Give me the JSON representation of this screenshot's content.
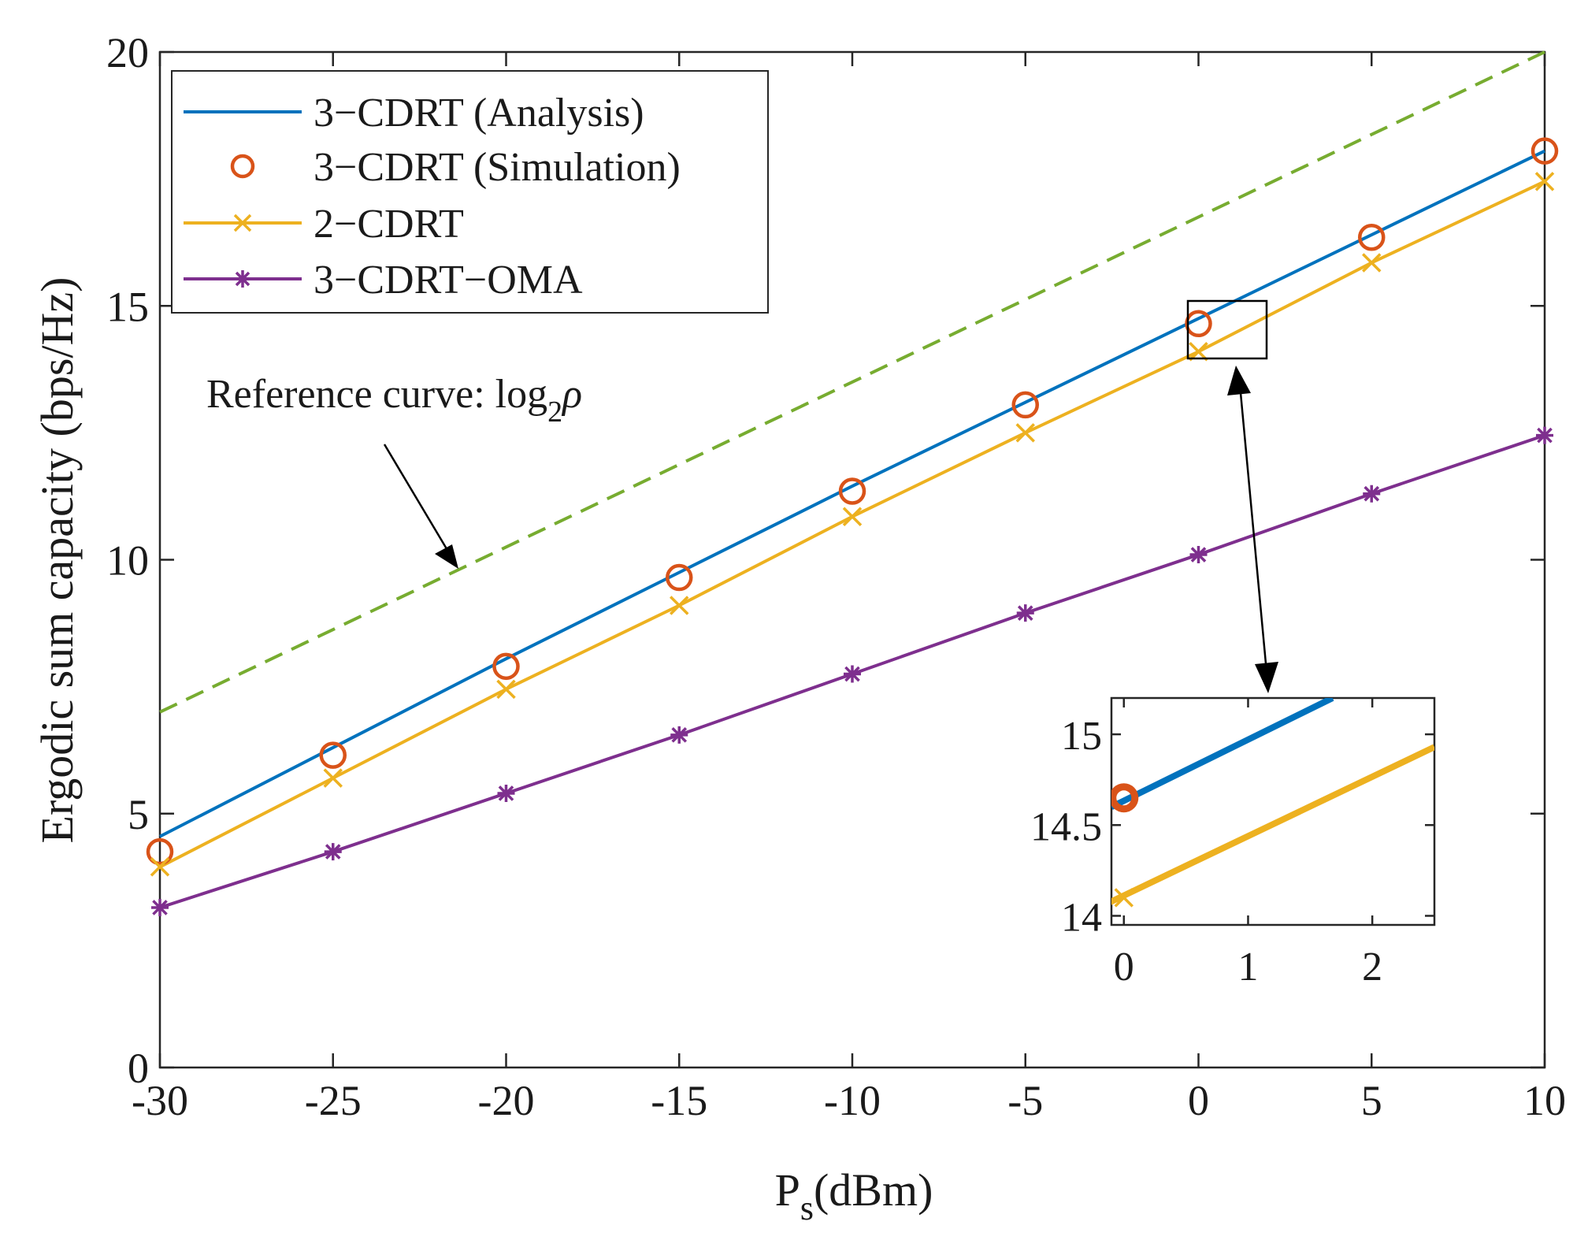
{
  "chart_data": {
    "type": "line",
    "xlabel_main": "P",
    "xlabel_sub": "s",
    "xlabel_unit": "(dBm)",
    "ylabel": "Ergodic sum capacity (bps/Hz)",
    "xlim": [
      -30,
      10
    ],
    "ylim": [
      0,
      20
    ],
    "xticks": [
      -30,
      -25,
      -20,
      -15,
      -10,
      -5,
      0,
      5,
      10
    ],
    "yticks": [
      0,
      5,
      10,
      15,
      20
    ],
    "x": [
      -30,
      -25,
      -20,
      -15,
      -10,
      -5,
      0,
      5,
      10
    ],
    "series": [
      {
        "name": "3−CDRT (Analysis)",
        "style": "line",
        "marker": "none",
        "color": "#0072BD",
        "values": [
          4.55,
          6.3,
          8.05,
          9.75,
          11.45,
          13.1,
          14.75,
          16.4,
          18.05
        ]
      },
      {
        "name": "3−CDRT (Simulation)",
        "style": "markers",
        "marker": "circle",
        "color": "#D95319",
        "values": [
          4.25,
          6.15,
          7.9,
          9.65,
          11.35,
          13.05,
          14.65,
          16.35,
          18.05
        ]
      },
      {
        "name": "2−CDRT",
        "style": "line",
        "marker": "x",
        "color": "#EDB120",
        "values": [
          3.95,
          5.7,
          7.45,
          9.1,
          10.85,
          12.5,
          14.1,
          15.85,
          17.45
        ]
      },
      {
        "name": "3−CDRT−OMA",
        "style": "line",
        "marker": "asterisk",
        "color": "#7E2F8E",
        "values": [
          3.15,
          4.25,
          5.4,
          6.55,
          7.75,
          8.95,
          10.1,
          11.3,
          12.45
        ]
      }
    ],
    "reference": {
      "color": "#77AC30",
      "style": "dashed",
      "x": [
        -30,
        10
      ],
      "values": [
        7.0,
        20.0
      ],
      "label_prefix": "Reference curve: log",
      "label_sub": "2",
      "label_symbol": "ρ"
    },
    "legend_position": "top-left",
    "inset": {
      "xlim": [
        -0.1,
        2.5
      ],
      "ylim": [
        13.95,
        15.2
      ],
      "xticks": [
        0,
        1,
        2
      ],
      "yticks": [
        14,
        14.5,
        15
      ],
      "analysis_line": {
        "x": [
          -0.1,
          1.68
        ],
        "values": [
          14.6,
          15.2
        ]
      },
      "yellow_line": {
        "x": [
          -0.25,
          2.5
        ],
        "values": [
          14.03,
          14.93
        ]
      },
      "circle_point": {
        "x": 0,
        "value": 14.65
      },
      "x_point": {
        "x": 0,
        "value": 14.1
      }
    }
  }
}
